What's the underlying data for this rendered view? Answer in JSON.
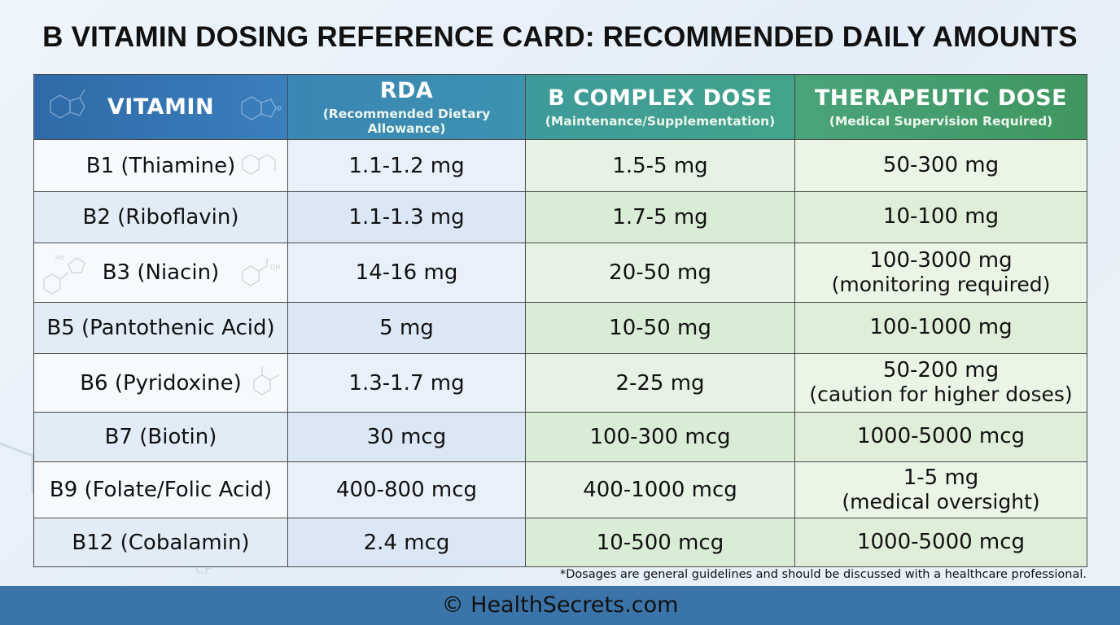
{
  "title": "B VITAMIN DOSING REFERENCE CARD: RECOMMENDED DAILY AMOUNTS",
  "headers": [
    {
      "main": "VITAMIN",
      "sub": ""
    },
    {
      "main": "RDA",
      "sub": "(Recommended Dietary Allowance)"
    },
    {
      "main": "B COMPLEX DOSE",
      "sub": "(Maintenance/Supplementation)"
    },
    {
      "main": "THERAPEUTIC DOSE",
      "sub": "(Medical Supervision Required)"
    }
  ],
  "rows": [
    {
      "vitamin": "B1 (Thiamine)",
      "rda": "1.1-1.2 mg",
      "complex": "1.5-5 mg",
      "therapeutic": "50-300 mg",
      "note": ""
    },
    {
      "vitamin": "B2 (Riboflavin)",
      "rda": "1.1-1.3 mg",
      "complex": "1.7-5 mg",
      "therapeutic": "10-100 mg",
      "note": ""
    },
    {
      "vitamin": "B3 (Niacin)",
      "rda": "14-16 mg",
      "complex": "20-50 mg",
      "therapeutic": "100-3000 mg",
      "note": "(monitoring required)"
    },
    {
      "vitamin": "B5 (Pantothenic Acid)",
      "rda": "5 mg",
      "complex": "10-50 mg",
      "therapeutic": "100-1000 mg",
      "note": ""
    },
    {
      "vitamin": "B6 (Pyridoxine)",
      "rda": "1.3-1.7 mg",
      "complex": "2-25 mg",
      "therapeutic": "50-200 mg",
      "note": "(caution for higher doses)"
    },
    {
      "vitamin": "B7 (Biotin)",
      "rda": "30 mcg",
      "complex": "100-300 mcg",
      "therapeutic": "1000-5000 mcg",
      "note": ""
    },
    {
      "vitamin": "B9 (Folate/Folic Acid)",
      "rda": "400-800 mcg",
      "complex": "400-1000 mcg",
      "therapeutic": "1-5 mg",
      "note": "(medical oversight)"
    },
    {
      "vitamin": "B12 (Cobalamin)",
      "rda": "2.4 mcg",
      "complex": "10-500 mcg",
      "therapeutic": "1000-5000 mcg",
      "note": ""
    }
  ],
  "footnote": "*Dosages are general guidelines and should be discussed with a healthcare professional.",
  "footer": "© HealthSecrets.com"
}
